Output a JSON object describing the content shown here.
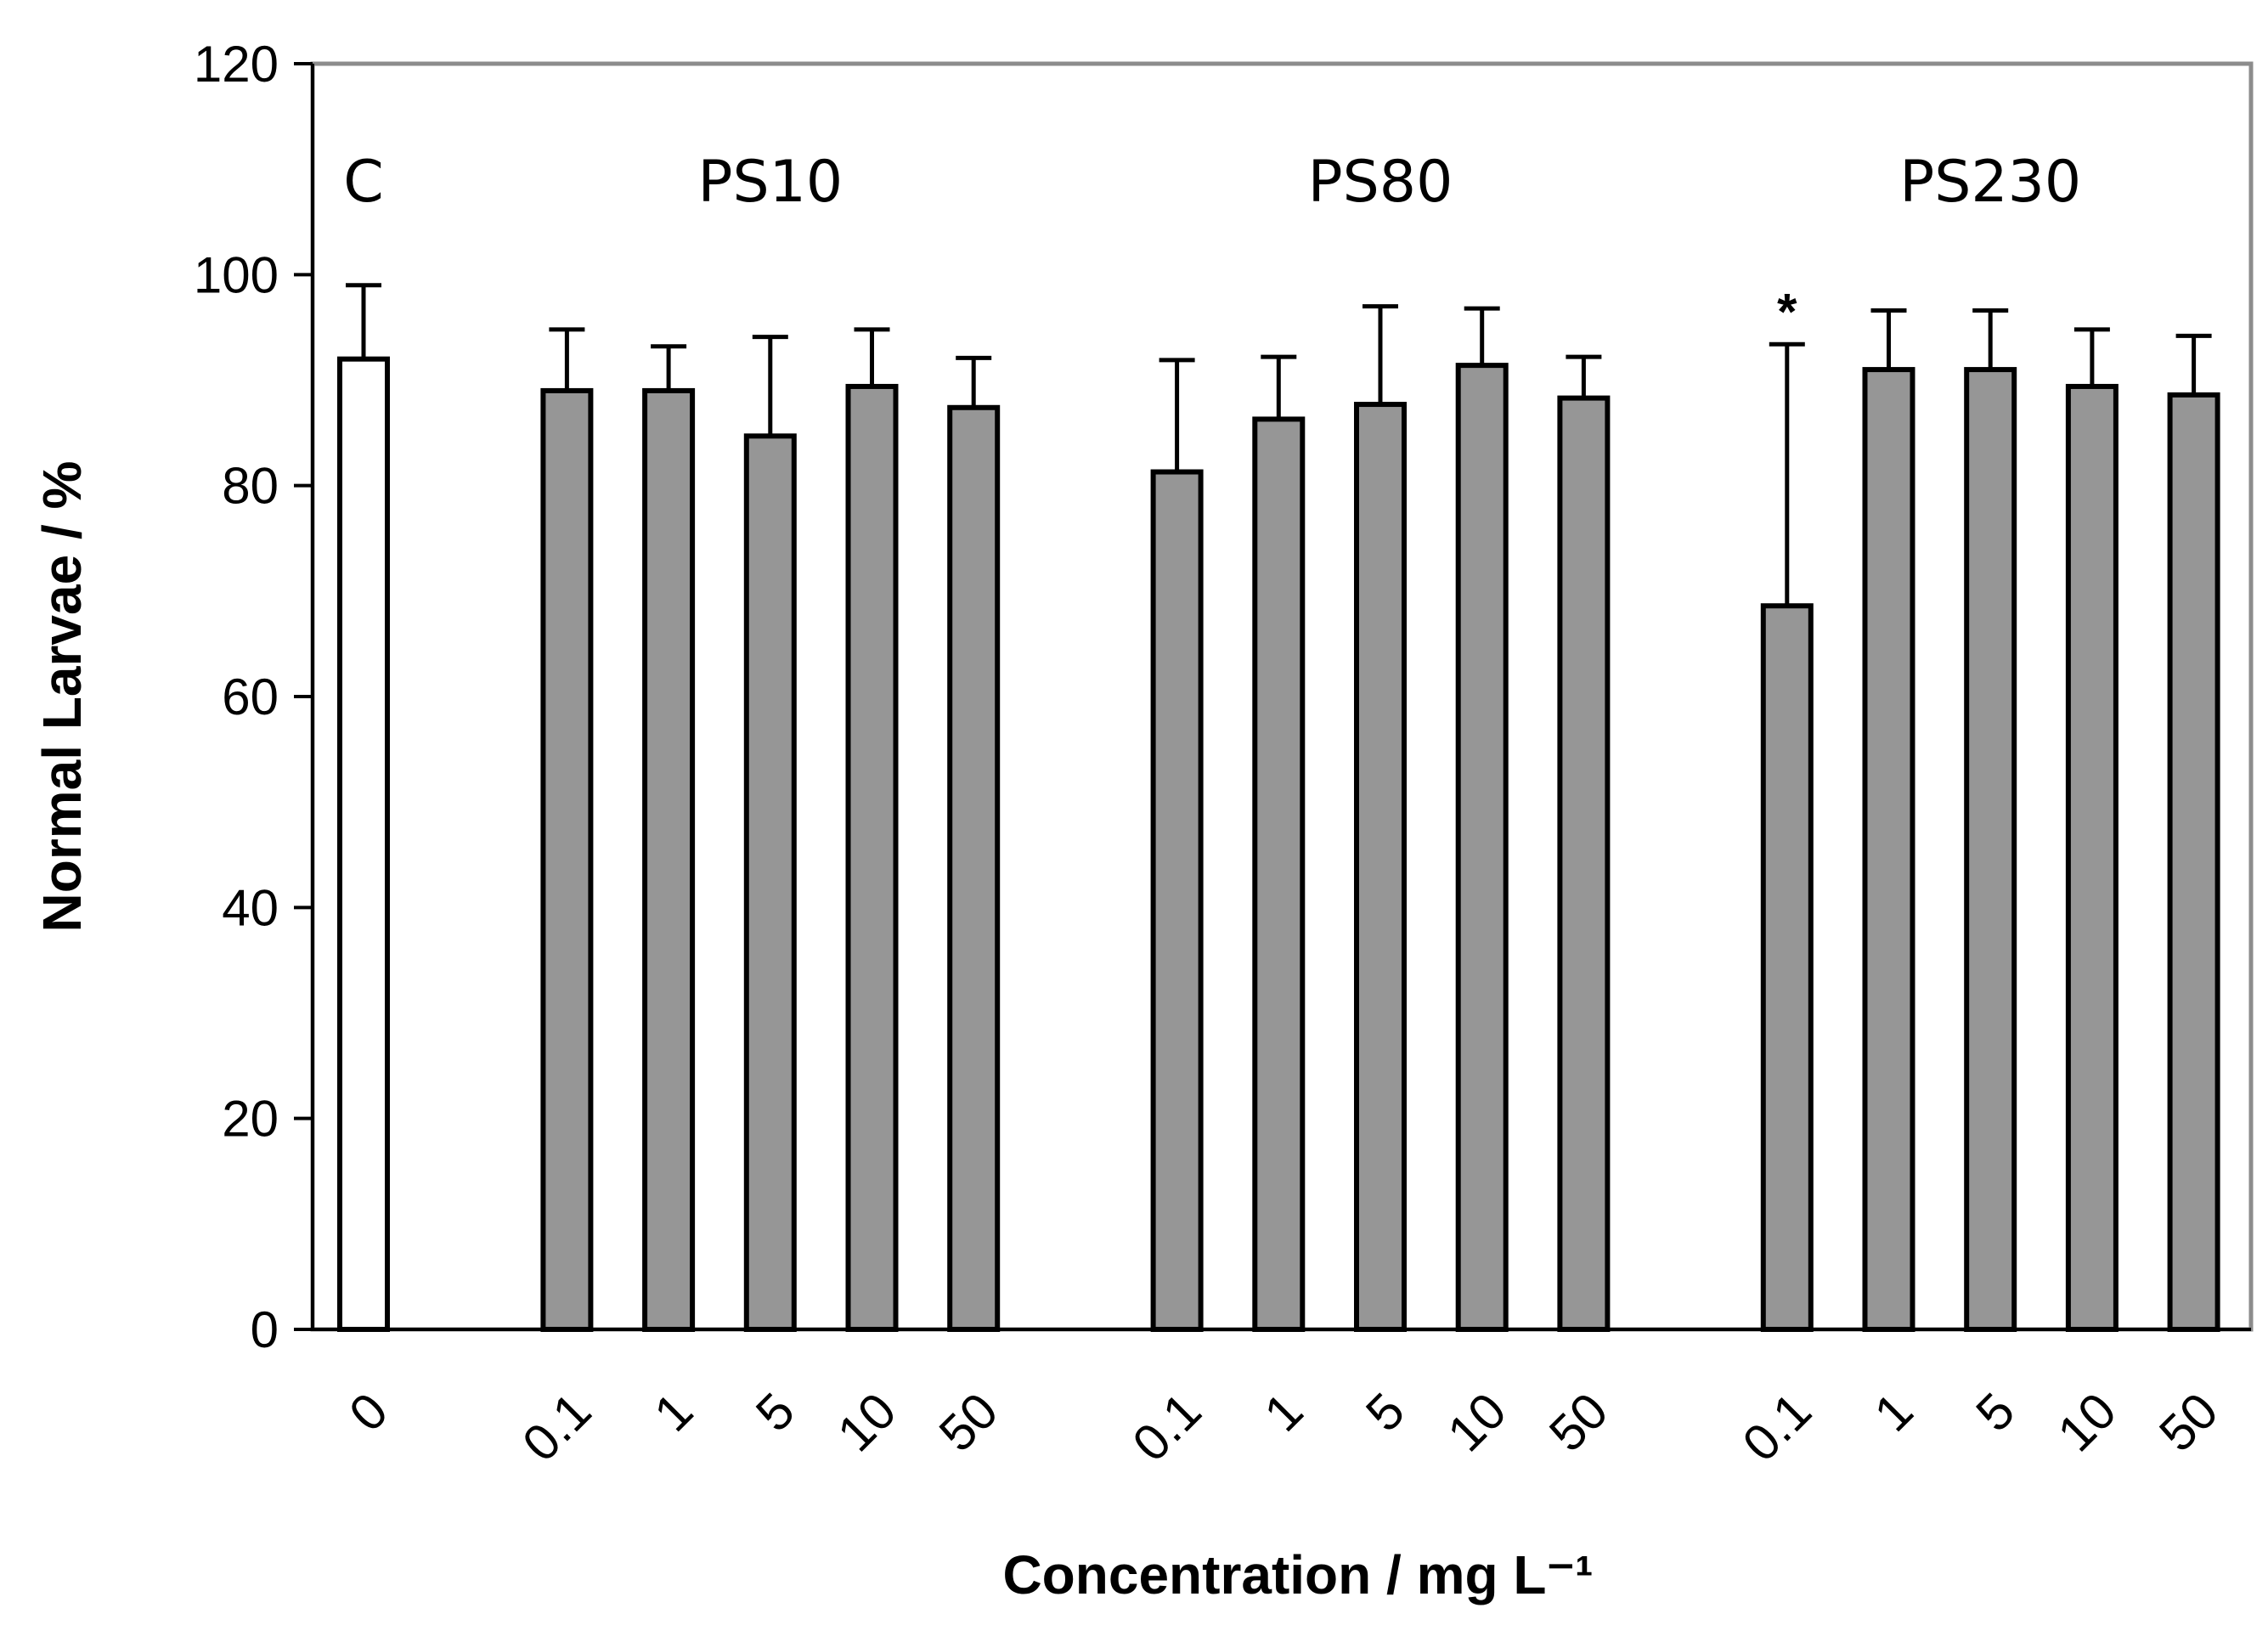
{
  "chart_data": {
    "type": "bar",
    "title": "",
    "xlabel": "Concentration / mg L⁻¹",
    "ylabel": "Normal Larvae / %",
    "ylim": [
      0,
      120
    ],
    "yticks": [
      0,
      20,
      40,
      60,
      80,
      100,
      120
    ],
    "grid": false,
    "legend": "none",
    "colors": {
      "control": "#ffffff",
      "treatment": "#969696",
      "outline": "#000000",
      "frame": "#8c8c8c"
    },
    "groups": [
      {
        "name": "C",
        "categories": [
          "0"
        ],
        "values": [
          92
        ],
        "errors": [
          7
        ],
        "fill": "control",
        "marks": [
          ""
        ]
      },
      {
        "name": "PS10",
        "categories": [
          "0.1",
          "1",
          "5",
          "10",
          "50"
        ],
        "values": [
          89,
          89,
          84.7,
          89.4,
          87.4
        ],
        "errors": [
          5.8,
          4.2,
          9.4,
          5.4,
          4.7
        ],
        "fill": "treatment",
        "marks": [
          "",
          "",
          "",
          "",
          ""
        ]
      },
      {
        "name": "PS80",
        "categories": [
          "0.1",
          "1",
          "5",
          "10",
          "50"
        ],
        "values": [
          81.3,
          86.3,
          87.7,
          91.4,
          88.3
        ],
        "errors": [
          10.6,
          5.9,
          9.3,
          5.4,
          3.9
        ],
        "fill": "treatment",
        "marks": [
          "",
          "",
          "",
          "",
          ""
        ]
      },
      {
        "name": "PS230",
        "categories": [
          "0.1",
          "1",
          "5",
          "10",
          "50"
        ],
        "values": [
          68.6,
          91,
          91,
          89.4,
          88.6
        ],
        "errors": [
          24.8,
          5.6,
          5.6,
          5.4,
          5.6
        ],
        "fill": "treatment",
        "marks": [
          "*",
          "",
          "",
          "",
          ""
        ]
      }
    ]
  }
}
